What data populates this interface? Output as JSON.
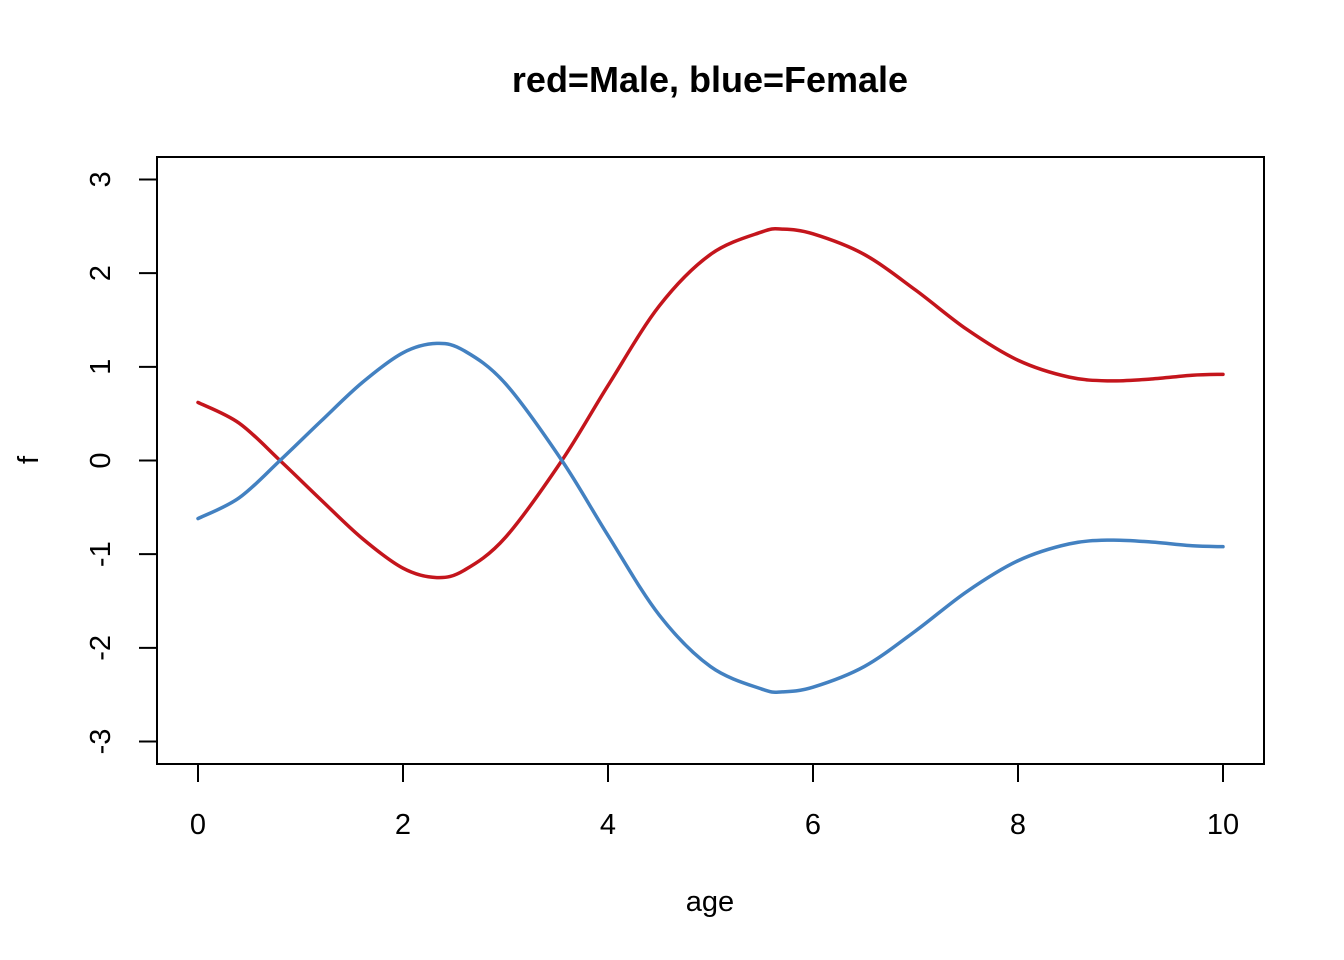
{
  "chart_data": {
    "type": "line",
    "title": "red=Male, blue=Female",
    "xlabel": "age",
    "ylabel": "f",
    "xlim": [
      -0.4,
      10.4
    ],
    "ylim": [
      -3.24,
      3.24
    ],
    "xticks": [
      0,
      2,
      4,
      6,
      8,
      10
    ],
    "yticks": [
      -3,
      -2,
      -1,
      0,
      1,
      2,
      3
    ],
    "x_tick_labels": [
      "0",
      "2",
      "4",
      "6",
      "8",
      "10"
    ],
    "y_tick_labels": [
      "-3",
      "-2",
      "-1",
      "0",
      "1",
      "2",
      "3"
    ],
    "grid": false,
    "legend": "none",
    "series": [
      {
        "color": "#C4151C",
        "points": [
          [
            0,
            0.62
          ],
          [
            0.4,
            0.4
          ],
          [
            0.8,
            0.0
          ],
          [
            1.2,
            -0.42
          ],
          [
            1.6,
            -0.83
          ],
          [
            2.0,
            -1.15
          ],
          [
            2.33,
            -1.25
          ],
          [
            2.6,
            -1.17
          ],
          [
            3.0,
            -0.82
          ],
          [
            3.55,
            0.0
          ],
          [
            4.0,
            0.8
          ],
          [
            4.5,
            1.65
          ],
          [
            5.0,
            2.2
          ],
          [
            5.5,
            2.44
          ],
          [
            5.7,
            2.47
          ],
          [
            6.0,
            2.42
          ],
          [
            6.5,
            2.2
          ],
          [
            7.0,
            1.82
          ],
          [
            7.5,
            1.4
          ],
          [
            8.0,
            1.07
          ],
          [
            8.5,
            0.89
          ],
          [
            8.9,
            0.85
          ],
          [
            9.3,
            0.87
          ],
          [
            9.7,
            0.91
          ],
          [
            10.0,
            0.92
          ]
        ]
      },
      {
        "color": "#4381C1",
        "points": [
          [
            0,
            -0.62
          ],
          [
            0.4,
            -0.4
          ],
          [
            0.8,
            0.0
          ],
          [
            1.2,
            0.42
          ],
          [
            1.6,
            0.83
          ],
          [
            2.0,
            1.15
          ],
          [
            2.33,
            1.25
          ],
          [
            2.6,
            1.17
          ],
          [
            3.0,
            0.82
          ],
          [
            3.55,
            0.0
          ],
          [
            4.0,
            -0.8
          ],
          [
            4.5,
            -1.65
          ],
          [
            5.0,
            -2.2
          ],
          [
            5.5,
            -2.44
          ],
          [
            5.7,
            -2.47
          ],
          [
            6.0,
            -2.42
          ],
          [
            6.5,
            -2.2
          ],
          [
            7.0,
            -1.82
          ],
          [
            7.5,
            -1.4
          ],
          [
            8.0,
            -1.07
          ],
          [
            8.5,
            -0.89
          ],
          [
            8.9,
            -0.85
          ],
          [
            9.3,
            -0.87
          ],
          [
            9.7,
            -0.91
          ],
          [
            10.0,
            -0.92
          ]
        ]
      }
    ]
  }
}
